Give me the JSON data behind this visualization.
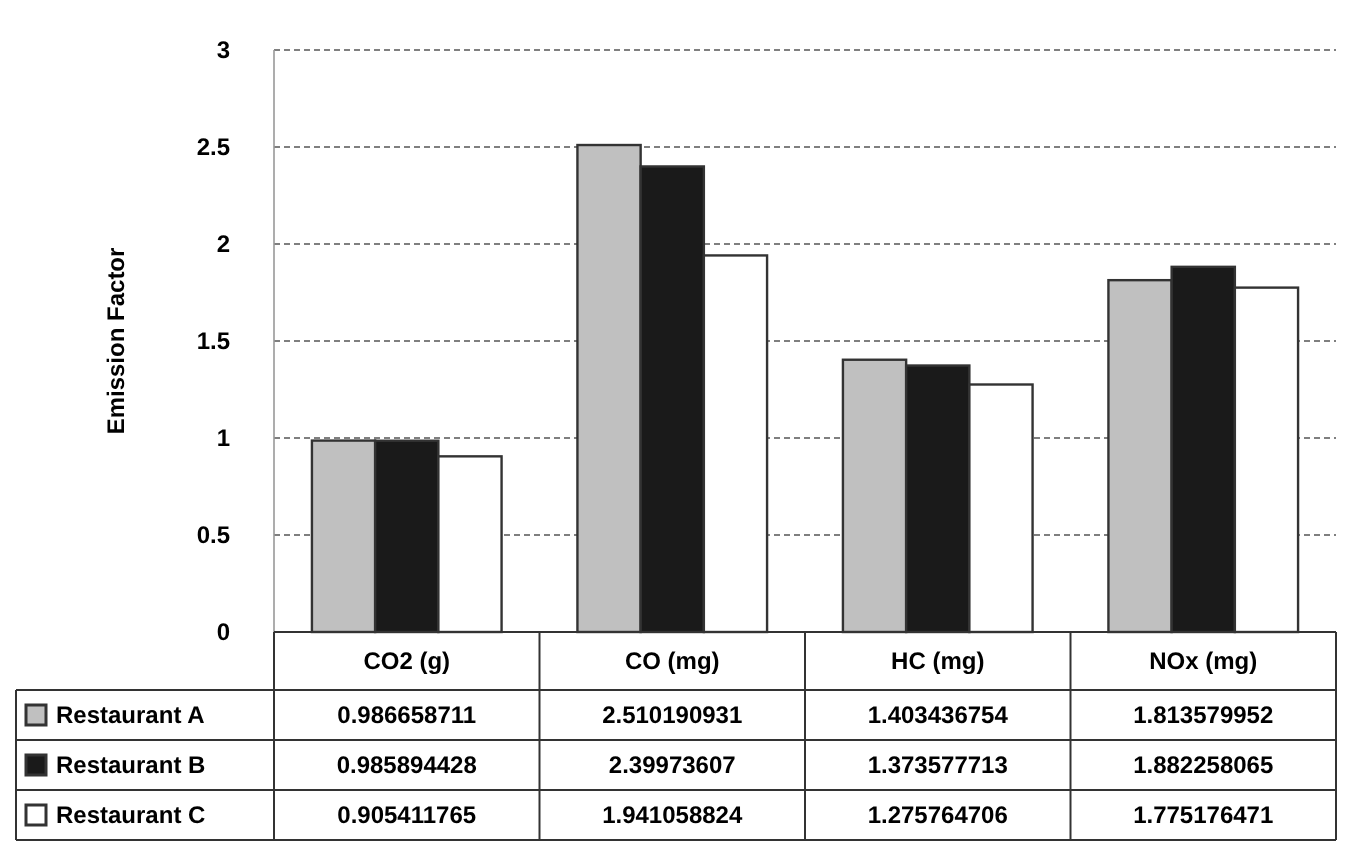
{
  "chart_data": {
    "type": "bar",
    "ylabel": "Emission Factor",
    "categories": [
      "CO2 (g)",
      "CO (mg)",
      "HC (mg)",
      "NOx (mg)"
    ],
    "series": [
      {
        "name": "Restaurant A",
        "color": "#c0c0c0",
        "values": [
          0.986658711,
          2.510190931,
          1.403436754,
          1.813579952
        ]
      },
      {
        "name": "Restaurant B",
        "color": "#1a1a1a",
        "values": [
          0.985894428,
          2.39973607,
          1.373577713,
          1.882258065
        ]
      },
      {
        "name": "Restaurant C",
        "color": "#ffffff",
        "values": [
          0.905411765,
          1.941058824,
          1.275764706,
          1.775176471
        ]
      }
    ],
    "ylim": [
      0,
      3
    ],
    "yticks": [
      0,
      0.5,
      1,
      1.5,
      2,
      2.5,
      3
    ],
    "grid": "y",
    "legend": "bottom",
    "data_labels": true
  }
}
